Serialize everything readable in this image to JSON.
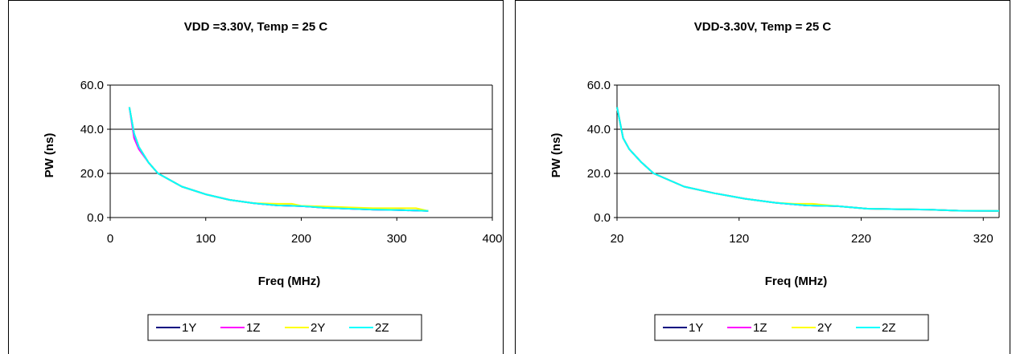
{
  "chart_data": [
    {
      "type": "line",
      "title": "VDD =3.30V, Temp = 25 C",
      "xlabel": "Freq (MHz)",
      "ylabel": "PW (ns)",
      "xlim": [
        0,
        400
      ],
      "ylim": [
        0,
        60
      ],
      "x_ticks": [
        "0",
        "100",
        "200",
        "300",
        "400"
      ],
      "y_ticks": [
        "0.0",
        "20.0",
        "40.0",
        "60.0"
      ],
      "grid": "horizontal",
      "legend_position": "bottom",
      "series": [
        {
          "name": "1Y",
          "color": "#000080",
          "x": [
            20,
            25,
            30,
            40,
            50,
            75,
            100,
            125,
            150,
            175,
            200,
            225,
            250,
            275,
            300,
            333
          ],
          "y": [
            50,
            38,
            32,
            25,
            20,
            14,
            10.5,
            8,
            6.5,
            5.5,
            5.2,
            4.4,
            4,
            3.6,
            3.4,
            3
          ]
        },
        {
          "name": "1Z",
          "color": "#ff00ff",
          "x": [
            20,
            25,
            30,
            40,
            50,
            75,
            100,
            125,
            150,
            175,
            200,
            225,
            250,
            275,
            300,
            333
          ],
          "y": [
            50,
            36,
            31,
            25,
            20,
            14,
            10.5,
            8,
            6.5,
            5.5,
            5.2,
            4.4,
            4,
            3.6,
            3.4,
            3
          ]
        },
        {
          "name": "2Y",
          "color": "#ffff00",
          "x": [
            20,
            25,
            30,
            40,
            50,
            75,
            100,
            125,
            150,
            175,
            190,
            200,
            225,
            250,
            275,
            300,
            320,
            333
          ],
          "y": [
            50,
            38,
            32,
            25,
            20,
            14,
            10.5,
            8,
            6.5,
            6.2,
            6.2,
            5.3,
            5,
            4.6,
            4.2,
            4.2,
            4.2,
            3
          ]
        },
        {
          "name": "2Z",
          "color": "#00ffff",
          "x": [
            20,
            25,
            30,
            40,
            50,
            75,
            100,
            125,
            150,
            175,
            200,
            225,
            250,
            275,
            300,
            333
          ],
          "y": [
            50,
            38,
            32,
            25,
            20,
            14,
            10.5,
            8,
            6.5,
            5.5,
            5.2,
            4.4,
            4,
            3.6,
            3.4,
            3
          ]
        }
      ]
    },
    {
      "type": "line",
      "title": "VDD-3.30V, Temp = 25 C",
      "xlabel": "Freq (MHz)",
      "ylabel": "PW (ns)",
      "xlim": [
        20,
        333
      ],
      "ylim": [
        0,
        60
      ],
      "x_ticks": [
        "20",
        "120",
        "220",
        "320"
      ],
      "y_ticks": [
        "0.0",
        "20.0",
        "40.0",
        "60.0"
      ],
      "grid": "horizontal",
      "legend_position": "bottom",
      "series": [
        {
          "name": "1Y",
          "color": "#000080",
          "x": [
            20,
            25,
            30,
            40,
            50,
            75,
            100,
            125,
            150,
            175,
            200,
            225,
            250,
            275,
            300,
            333
          ],
          "y": [
            50,
            36,
            31,
            25,
            20,
            14,
            11,
            8.5,
            6.7,
            5.5,
            5.2,
            4,
            3.8,
            3.6,
            3.1,
            3
          ]
        },
        {
          "name": "1Z",
          "color": "#ff00ff",
          "x": [
            20,
            25,
            30,
            40,
            50,
            75,
            100,
            125,
            150,
            175,
            200,
            225,
            250,
            275,
            300,
            333
          ],
          "y": [
            50,
            36,
            31,
            25,
            20,
            14,
            11,
            8.5,
            6.7,
            5.5,
            5.2,
            4,
            3.8,
            3.6,
            3.1,
            3
          ]
        },
        {
          "name": "2Y",
          "color": "#ffff00",
          "x": [
            20,
            25,
            30,
            40,
            50,
            75,
            100,
            125,
            150,
            165,
            180,
            200,
            225,
            250,
            275,
            300,
            333
          ],
          "y": [
            50,
            36,
            31,
            25,
            20,
            14,
            11,
            8.5,
            6.7,
            6.2,
            6.2,
            5.2,
            4,
            3.8,
            3.6,
            3.1,
            3
          ]
        },
        {
          "name": "2Z",
          "color": "#00ffff",
          "x": [
            20,
            25,
            30,
            40,
            50,
            75,
            100,
            125,
            150,
            175,
            200,
            225,
            250,
            275,
            300,
            333
          ],
          "y": [
            50,
            36,
            31,
            25,
            20,
            14,
            11,
            8.5,
            6.7,
            5.5,
            5.2,
            4,
            3.8,
            3.6,
            3.1,
            3
          ]
        }
      ]
    }
  ]
}
